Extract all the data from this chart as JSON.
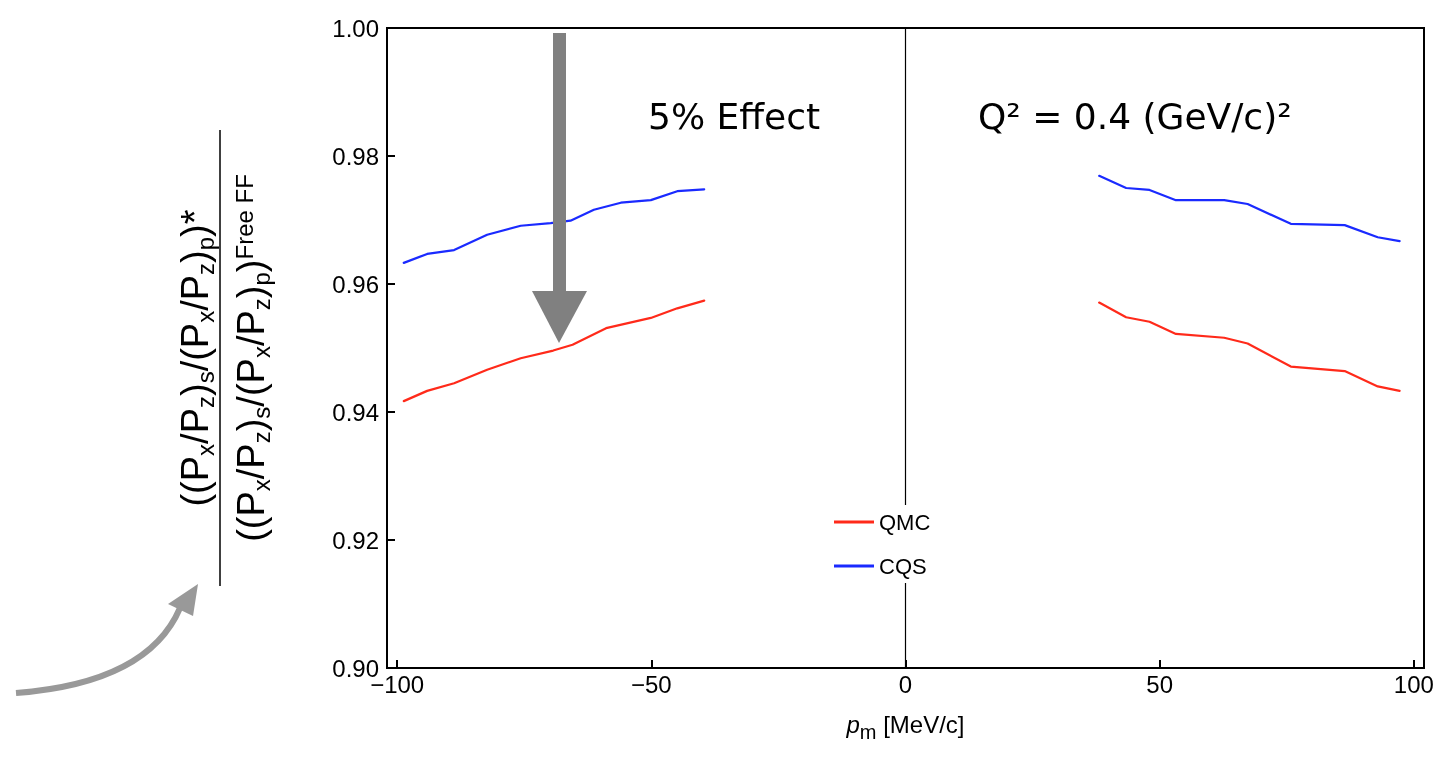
{
  "chart_data": {
    "type": "line",
    "xlabel": "p$_{m}$ [MeV/c]",
    "ylabel": "((P$_{x}$/P$_{z}$)$_{s}$/(P$_{x}$/P$_{z}$)$_{p}$)*\n((P$_{x}$/P$_{z}$)$_{s}$/(P$_{x}$/P$_{z}$)$_{p}$)$^{Free FF}$",
    "annotations": [
      "5% Effect",
      "Q² = 0.4 (GeV/c)²"
    ],
    "series": [
      {
        "name": "QMC",
        "color": "#ff2a1a",
        "x": [
          -98.7,
          -94.1,
          -88.8,
          -82.3,
          -75.7,
          -69.3,
          -65.5,
          -58.9,
          -50.1,
          -44.9,
          -39.6,
          0,
          38.1,
          43.4,
          48.0,
          53.2,
          62.7,
          67.3,
          75.8,
          86.4,
          92.9,
          97.2
        ],
        "values": [
          0.9417,
          0.9433,
          0.9445,
          0.9466,
          0.9484,
          0.9496,
          0.9505,
          0.9531,
          0.9547,
          0.9562,
          0.9574,
          null,
          0.9571,
          0.9548,
          0.9541,
          0.9522,
          0.9516,
          0.9507,
          0.9471,
          0.9464,
          0.944,
          0.9433
        ]
      },
      {
        "name": "CQS",
        "color": "#1a2aff",
        "x": [
          -98.7,
          -94.1,
          -88.8,
          -82.3,
          -75.7,
          -69.8,
          -65.9,
          -61.3,
          -56.0,
          -50.1,
          -44.9,
          -39.6,
          0,
          38.1,
          43.4,
          48.0,
          53.2,
          62.7,
          67.3,
          75.8,
          86.4,
          92.9,
          97.2
        ],
        "values": [
          0.9633,
          0.9647,
          0.9653,
          0.9677,
          0.9691,
          0.9695,
          0.9699,
          0.9716,
          0.9727,
          0.9731,
          0.9745,
          0.9748,
          null,
          0.9769,
          0.975,
          0.9747,
          0.9731,
          0.9731,
          0.9725,
          0.9694,
          0.9692,
          0.9673,
          0.9667
        ]
      }
    ],
    "xlim": [
      -102,
      102
    ],
    "xticks": [
      {
        "value": -100,
        "label": "−100"
      },
      {
        "value": -50,
        "label": "−50"
      },
      0,
      50,
      100
    ],
    "ylim": [
      0.9,
      1.0
    ],
    "yticks": [
      {
        "value": 0.9,
        "label": "0.90"
      },
      0.92,
      0.94,
      0.96,
      0.98,
      {
        "value": 1.0,
        "label": "1.00"
      }
    ],
    "ref_lines": [
      {
        "axis": "x",
        "value": 0,
        "color": "#000000"
      }
    ],
    "legend": "bottom",
    "grid": false,
    "marker": "none",
    "line_style": "solid"
  }
}
